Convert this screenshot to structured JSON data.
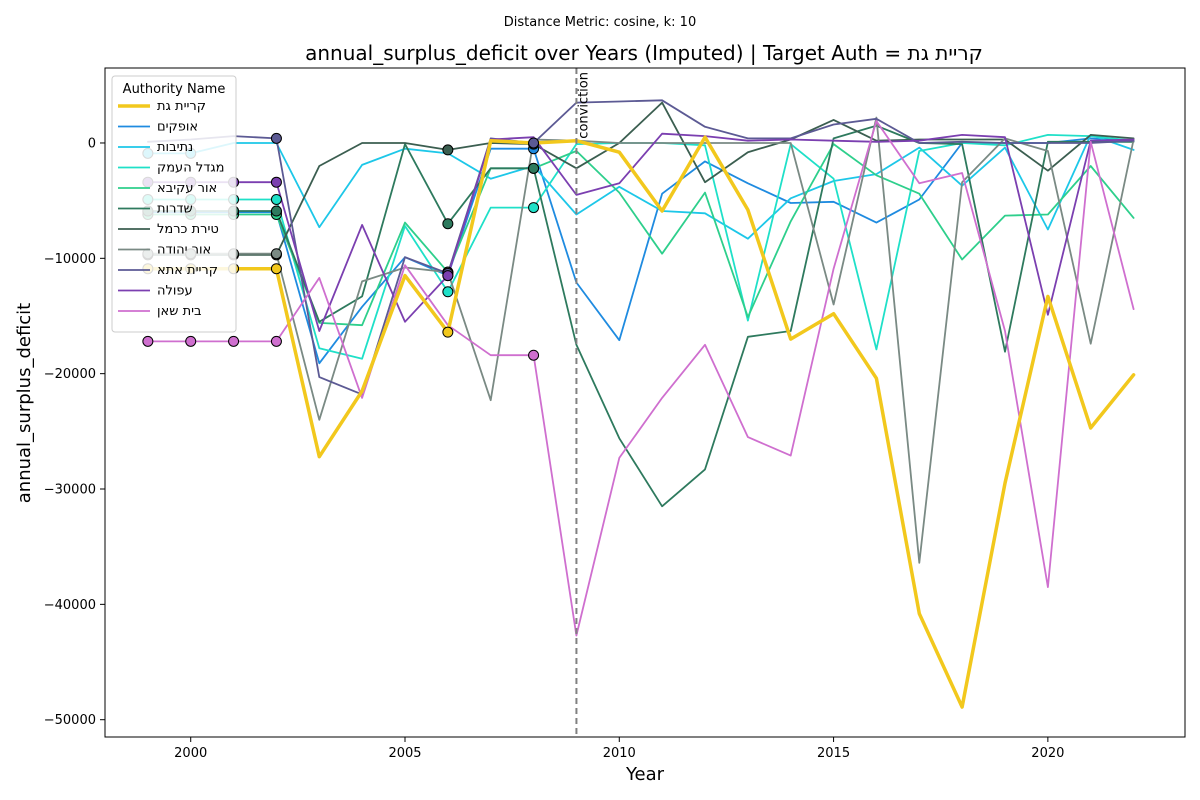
{
  "chart_data": {
    "type": "line",
    "subtitle": "Distance Metric: cosine, k: 10",
    "title": "annual_surplus_deficit over Years (Imputed) | Target Auth = קריית גת",
    "xlabel": "Year",
    "ylabel": "annual_surplus_deficit",
    "xlim": [
      1998,
      2023.2
    ],
    "ylim": [
      -51500,
      6500
    ],
    "x_ticks": [
      2000,
      2005,
      2010,
      2015,
      2020
    ],
    "y_ticks": [
      0,
      -10000,
      -20000,
      -30000,
      -40000,
      -50000
    ],
    "y_tick_labels": [
      "0",
      "−10000",
      "−20000",
      "−30000",
      "−40000",
      "−50000"
    ],
    "grid": false,
    "legend": {
      "title": "Authority Name",
      "placement": "top-left"
    },
    "annotation": {
      "x": 2009,
      "text": "conviction",
      "style": "dashed-vertical-line",
      "color": "#808080"
    },
    "x": [
      1999,
      2000,
      2001,
      2002,
      2003,
      2004,
      2005,
      2006,
      2007,
      2008,
      2009,
      2010,
      2011,
      2012,
      2013,
      2014,
      2015,
      2016,
      2017,
      2018,
      2019,
      2020,
      2021,
      2022
    ],
    "series": [
      {
        "name": "קריית גת",
        "color": "#f2c81d",
        "width": 3.5,
        "target": true,
        "values": [
          -10900,
          -10900,
          -10900,
          -10900,
          -27200,
          -21500,
          -11500,
          -16400,
          200,
          0,
          200,
          -800,
          -5900,
          500,
          -5800,
          -17000,
          -14800,
          -20400,
          -40800,
          -48900,
          -29500,
          -13300,
          -24700,
          -20100
        ],
        "imputed_years": [
          1999,
          2000,
          2001,
          2002,
          2006
        ]
      },
      {
        "name": "אופקים",
        "color": "#1f8be0",
        "width": 1.8,
        "values": [
          -6000,
          -6000,
          -6000,
          -6000,
          -19100,
          -14200,
          -9900,
          -11500,
          -500,
          -500,
          -12100,
          -17100,
          -4400,
          -1600,
          -3500,
          -5200,
          -5100,
          -6900,
          -4900,
          0,
          0,
          0,
          400,
          200
        ],
        "imputed_years": [
          1999,
          2000,
          2001,
          2002,
          2006,
          2008
        ]
      },
      {
        "name": "נתיבות",
        "color": "#1dc7e8",
        "width": 1.8,
        "values": [
          -900,
          -900,
          0,
          0,
          -7300,
          -1900,
          -500,
          -900,
          -3100,
          -2000,
          -6200,
          -3800,
          -5900,
          -6100,
          -8300,
          -4800,
          -3300,
          -2700,
          -400,
          -3700,
          -400,
          -7500,
          700,
          -600
        ],
        "imputed_years": [
          1999,
          2000
        ]
      },
      {
        "name": "מגדל העמק",
        "color": "#1fe0c8",
        "width": 1.8,
        "values": [
          -4900,
          -4900,
          -4900,
          -4900,
          -17800,
          -18700,
          -7200,
          -12900,
          -5600,
          -5600,
          -100,
          0,
          0,
          -200,
          -15400,
          -100,
          -3100,
          -17900,
          -700,
          0,
          -200,
          700,
          600,
          200
        ],
        "imputed_years": [
          1999,
          2000,
          2001,
          2002,
          2006,
          2008
        ]
      },
      {
        "name": "אור עקיבא",
        "color": "#2ecf8c",
        "width": 1.8,
        "values": [
          -6200,
          -6200,
          -6200,
          -6200,
          -15600,
          -15800,
          -6900,
          -11200,
          -2200,
          -2200,
          -700,
          -4300,
          -9600,
          -4300,
          -15100,
          -6800,
          -100,
          -2800,
          -4400,
          -10100,
          -6300,
          -6200,
          -2000,
          -6500
        ],
        "imputed_years": [
          1999,
          2000,
          2001,
          2002,
          2006,
          2008
        ]
      },
      {
        "name": "שדרות",
        "color": "#2e7a5e",
        "width": 1.8,
        "values": [
          -5900,
          -5900,
          -5900,
          -5900,
          -15500,
          -13300,
          -100,
          -7000,
          -2200,
          -2200,
          -17500,
          -25600,
          -31500,
          -28300,
          -16800,
          -16300,
          400,
          1500,
          0,
          -100,
          -18100,
          100,
          100,
          100
        ],
        "imputed_years": [
          1999,
          2000,
          2001,
          2002,
          2006,
          2008
        ]
      },
      {
        "name": "טירת כרמל",
        "color": "#3b5e50",
        "width": 1.8,
        "values": [
          -9700,
          -9700,
          -9700,
          -9700,
          -2000,
          0,
          0,
          -600,
          0,
          -100,
          -2200,
          0,
          3500,
          -3400,
          -800,
          300,
          2000,
          200,
          300,
          300,
          300,
          -2400,
          700,
          400
        ],
        "imputed_years": [
          1999,
          2000,
          2001,
          2002,
          2006,
          2008
        ]
      },
      {
        "name": "אור יהודה",
        "color": "#7a8a84",
        "width": 1.8,
        "values": [
          -9600,
          -9600,
          -9600,
          -9600,
          -24000,
          -12000,
          -10800,
          -11200,
          -22300,
          300,
          200,
          0,
          0,
          0,
          0,
          0,
          -14000,
          2200,
          -36400,
          -3400,
          400,
          -700,
          -17400,
          300
        ],
        "imputed_years": [
          1999,
          2000,
          2001,
          2002,
          2006
        ]
      },
      {
        "name": "קריית אתא",
        "color": "#5c5a94",
        "width": 1.8,
        "values": [
          100,
          300,
          600,
          400,
          -20300,
          -21800,
          -9900,
          -11300,
          400,
          0,
          3500,
          3600,
          3700,
          1400,
          400,
          400,
          1600,
          2100,
          0,
          100,
          0,
          0,
          0,
          200
        ],
        "imputed_years": [
          2002,
          2006,
          2008
        ]
      },
      {
        "name": "עפולה",
        "color": "#7b3fb0",
        "width": 1.8,
        "values": [
          -3400,
          -3400,
          -3400,
          -3400,
          -16300,
          -7100,
          -15500,
          -11500,
          300,
          500,
          -4500,
          -3500,
          800,
          600,
          200,
          300,
          200,
          100,
          200,
          700,
          500,
          -14900,
          200,
          300
        ],
        "imputed_years": [
          1999,
          2000,
          2001,
          2002,
          2006
        ]
      },
      {
        "name": "בית שאן",
        "color": "#cf6fcf",
        "width": 1.8,
        "values": [
          -17200,
          -17200,
          -17200,
          -17200,
          -11700,
          -22100,
          -10600,
          -15800,
          -18400,
          -18400,
          -42700,
          -27300,
          -22100,
          -17500,
          -25500,
          -27100,
          -10900,
          1900,
          -3500,
          -2600,
          -16300,
          -38500,
          100,
          -14400
        ],
        "imputed_years": [
          1999,
          2000,
          2001,
          2002,
          2008
        ]
      }
    ]
  }
}
